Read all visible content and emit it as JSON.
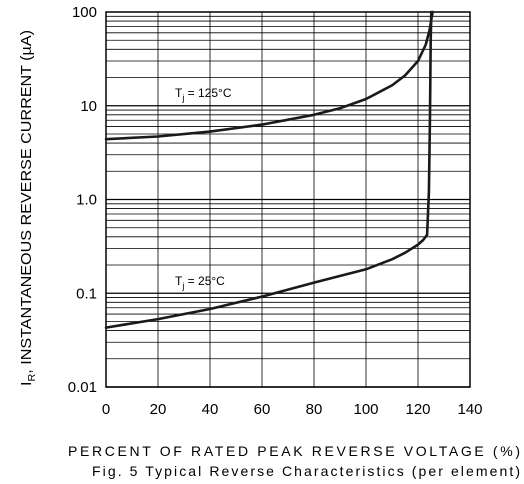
{
  "chart_data": {
    "type": "line",
    "title": "",
    "xlabel": "PERCENT OF RATED PEAK REVERSE VOLTAGE (%)",
    "ylabel": "IR, INSTANTANEOUS REVERSE CURRENT (µA)",
    "ylabel_parts": {
      "sym": "I",
      "sub": "R",
      "text": ", INSTANTANEOUS REVERSE CURRENT (µA)"
    },
    "caption": "Fig. 5  Typical Reverse Characteristics (per element)",
    "xlim": [
      0,
      140
    ],
    "ylim": [
      0.01,
      100
    ],
    "y_scale": "log",
    "x_ticks": [
      "0",
      "20",
      "40",
      "60",
      "80",
      "100",
      "120",
      "140"
    ],
    "y_ticks": [
      "0.01",
      "0.1",
      "1.0",
      "10",
      "100"
    ],
    "grid": true,
    "series": [
      {
        "name": "Tj = 125°C",
        "label_parts": {
          "sym": "T",
          "sub": "j",
          "text": " = 125°C"
        },
        "x": [
          0,
          20,
          40,
          60,
          80,
          90,
          100,
          110,
          115,
          120,
          123,
          124.5,
          125.2,
          125.6
        ],
        "y": [
          4.4,
          4.7,
          5.3,
          6.3,
          8.0,
          9.4,
          11.8,
          16.5,
          21,
          30,
          45,
          65,
          85,
          100
        ]
      },
      {
        "name": "Tj = 25°C",
        "label_parts": {
          "sym": "T",
          "sub": "j",
          "text": " = 25°C"
        },
        "x": [
          0,
          20,
          40,
          60,
          80,
          100,
          110,
          115,
          120,
          122,
          123.5,
          124.2,
          124.6,
          124.9,
          125.1
        ],
        "y": [
          0.043,
          0.053,
          0.068,
          0.092,
          0.13,
          0.18,
          0.23,
          0.27,
          0.33,
          0.37,
          0.42,
          1.2,
          8,
          50,
          100
        ]
      }
    ]
  }
}
